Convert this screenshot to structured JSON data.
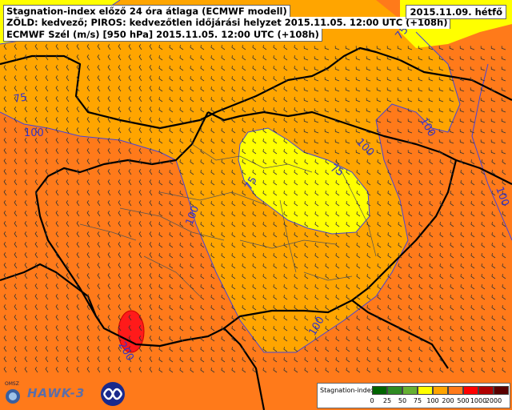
{
  "header": {
    "line1": "Stagnation-index előző 24 óra átlaga (ECMWF modell)",
    "line2": "ZÖLD: kedvező; PIROS: kedvezőtlen időjárási helyzet 2015.11.05. 12:00 UTC (+108h)",
    "line3": "ECMWF Szél (m/s) [950 hPa] 2015.11.05. 12:00 UTC (+108h)",
    "date": "2015.11.09. hétfő"
  },
  "contour_labels": [
    "75",
    "100",
    "100",
    "100",
    "100",
    "100",
    "75",
    "75",
    "100",
    "75",
    "100",
    "200"
  ],
  "legend": {
    "title": "Stagnation-index",
    "ticks": [
      "0",
      "25",
      "50",
      "75",
      "100",
      "200",
      "500",
      "1000",
      "2000"
    ],
    "colors": [
      "#006400",
      "#2e8b22",
      "#66b032",
      "#ffff00",
      "#ffa500",
      "#ff7a1a",
      "#ff0000",
      "#b00000",
      "#5a0000"
    ]
  },
  "logos": {
    "omsz": "OMSZ",
    "hawk": "HAWK-3"
  },
  "colors": {
    "yellow": "#ffff00",
    "light_orange": "#ffa500",
    "orange": "#ff7a1a",
    "red": "#ff1a1a",
    "contour": "#4444dd"
  }
}
